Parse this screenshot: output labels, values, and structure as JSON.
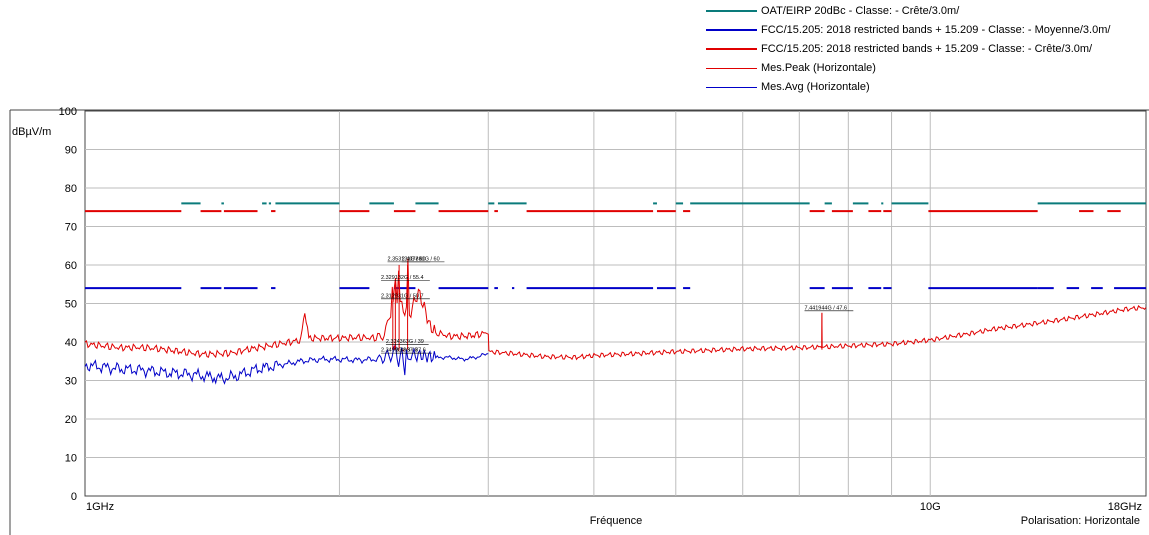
{
  "legend": {
    "items": [
      {
        "label": "OAT/EIRP 20dBc - Classe: - Crête/3.0m/",
        "color": "#0a7b7b",
        "style": "thick"
      },
      {
        "label": "FCC/15.205: 2018 restricted bands + 15.209 - Classe: - Moyenne/3.0m/",
        "color": "#0000c8",
        "style": "thick"
      },
      {
        "label": "FCC/15.205: 2018 restricted bands + 15.209 - Classe: - Crête/3.0m/",
        "color": "#e00000",
        "style": "thick"
      },
      {
        "label": "Mes.Peak (Horizontale)",
        "color": "#e00000",
        "style": "thin"
      },
      {
        "label": "Mes.Avg (Horizontale)",
        "color": "#0000c8",
        "style": "thin"
      }
    ]
  },
  "chart_data": {
    "type": "line",
    "x_scale": "log",
    "xlim": [
      1,
      18
    ],
    "ylim": [
      0,
      100
    ],
    "ylabel": "dBµV/m",
    "xlabel": "Fréquence",
    "polarisation": "Polarisation: Horizontale",
    "grid": true,
    "y_ticks": [
      "0",
      "10",
      "20",
      "30",
      "40",
      "50",
      "60",
      "70",
      "80",
      "90",
      "100"
    ],
    "x_tick_labels": [
      {
        "label": "1GHz",
        "x": 1
      },
      {
        "label": "10G",
        "x": 10
      },
      {
        "label": "18GHz",
        "x": 18
      }
    ],
    "x_grid": [
      2,
      3,
      4,
      5,
      6,
      7,
      8,
      9,
      10
    ],
    "limit_lines": [
      {
        "name": "OAT/EIRP 20dBc - Classe: - Crête/3.0m/",
        "color": "#0a7b7b",
        "y": 76,
        "segments": [
          [
            1.3,
            1.37
          ],
          [
            1.45,
            1.46
          ],
          [
            1.62,
            1.64
          ],
          [
            1.65,
            1.66
          ],
          [
            1.68,
            2.0
          ],
          [
            2.17,
            2.32
          ],
          [
            2.46,
            2.62
          ],
          [
            3.0,
            3.05
          ],
          [
            3.08,
            3.33
          ],
          [
            4.7,
            4.75
          ],
          [
            5.0,
            5.1
          ],
          [
            5.2,
            7.2
          ],
          [
            7.5,
            7.65
          ],
          [
            8.1,
            8.45
          ],
          [
            8.75,
            8.8
          ],
          [
            9.0,
            9.95
          ],
          [
            13.4,
            18
          ]
        ]
      },
      {
        "name": "FCC/15.205: 2018 restricted bands + 15.209 - Classe: - Moyenne/3.0m/",
        "color": "#0000c8",
        "y": 54,
        "segments": [
          [
            1.0,
            1.3
          ],
          [
            1.37,
            1.45
          ],
          [
            1.46,
            1.6
          ],
          [
            1.66,
            1.68
          ],
          [
            2.0,
            2.17
          ],
          [
            2.32,
            2.46
          ],
          [
            2.62,
            3.0
          ],
          [
            3.05,
            3.08
          ],
          [
            3.2,
            3.22
          ],
          [
            3.33,
            4.7
          ],
          [
            4.75,
            5.0
          ],
          [
            5.1,
            5.2
          ],
          [
            7.2,
            7.5
          ],
          [
            7.65,
            8.1
          ],
          [
            8.45,
            8.75
          ],
          [
            8.8,
            9.0
          ],
          [
            9.95,
            13.4
          ],
          [
            13.4,
            14.0
          ],
          [
            14.5,
            15.0
          ],
          [
            15.5,
            16.0
          ],
          [
            16.5,
            18
          ]
        ]
      },
      {
        "name": "FCC/15.205: 2018 restricted bands + 15.209 - Classe: - Crête/3.0m/",
        "color": "#e00000",
        "y": 74,
        "segments": [
          [
            1.0,
            1.3
          ],
          [
            1.37,
            1.45
          ],
          [
            1.46,
            1.6
          ],
          [
            1.66,
            1.68
          ],
          [
            2.0,
            2.17
          ],
          [
            2.32,
            2.46
          ],
          [
            2.62,
            3.0
          ],
          [
            3.05,
            3.08
          ],
          [
            3.33,
            4.7
          ],
          [
            4.75,
            5.0
          ],
          [
            5.1,
            5.2
          ],
          [
            7.2,
            7.5
          ],
          [
            7.65,
            8.1
          ],
          [
            8.45,
            8.75
          ],
          [
            8.8,
            9.0
          ],
          [
            9.95,
            13.4
          ],
          [
            15.0,
            15.6
          ],
          [
            16.2,
            16.8
          ]
        ]
      }
    ],
    "series": [
      {
        "name": "Mes.Peak (Horizontale)",
        "color": "#e00000",
        "points": [
          [
            1.0,
            39.5
          ],
          [
            1.05,
            39.0
          ],
          [
            1.1,
            38.5
          ],
          [
            1.15,
            38.6
          ],
          [
            1.2,
            38.4
          ],
          [
            1.25,
            38.0
          ],
          [
            1.3,
            37.5
          ],
          [
            1.35,
            37.0
          ],
          [
            1.4,
            36.8
          ],
          [
            1.45,
            37.0
          ],
          [
            1.5,
            37.2
          ],
          [
            1.55,
            38.0
          ],
          [
            1.6,
            38.5
          ],
          [
            1.65,
            39.0
          ],
          [
            1.7,
            39.5
          ],
          [
            1.75,
            40.0
          ],
          [
            1.8,
            40.5
          ],
          [
            1.82,
            48.0
          ],
          [
            1.84,
            41.0
          ],
          [
            1.9,
            41.0
          ],
          [
            2.0,
            41.0
          ],
          [
            2.1,
            41.2
          ],
          [
            2.2,
            41.0
          ],
          [
            2.25,
            42.0
          ],
          [
            2.28,
            44.0
          ],
          [
            2.3,
            48.0
          ],
          [
            2.31,
            55.0
          ],
          [
            2.315,
            50.7
          ],
          [
            2.32,
            52.0
          ],
          [
            2.33,
            55.4
          ],
          [
            2.34,
            51.0
          ],
          [
            2.35,
            60.0
          ],
          [
            2.36,
            50.0
          ],
          [
            2.37,
            49.0
          ],
          [
            2.38,
            48.0
          ],
          [
            2.4,
            49.0
          ],
          [
            2.41,
            60.0
          ],
          [
            2.42,
            47.0
          ],
          [
            2.45,
            50.0
          ],
          [
            2.48,
            53.0
          ],
          [
            2.52,
            49.0
          ],
          [
            2.56,
            44.0
          ],
          [
            2.6,
            42.5
          ],
          [
            2.7,
            41.5
          ],
          [
            2.8,
            41.5
          ],
          [
            2.9,
            41.8
          ],
          [
            3.0,
            42.5
          ],
          [
            3.005,
            37.5
          ],
          [
            3.2,
            37.0
          ],
          [
            3.5,
            36.2
          ],
          [
            3.8,
            36.0
          ],
          [
            4.0,
            36.5
          ],
          [
            4.5,
            37.0
          ],
          [
            5.0,
            37.5
          ],
          [
            6.0,
            38.2
          ],
          [
            7.0,
            38.5
          ],
          [
            7.44,
            38.7
          ],
          [
            7.445,
            47.6
          ],
          [
            7.45,
            38.7
          ],
          [
            8.0,
            39.0
          ],
          [
            9.0,
            39.5
          ],
          [
            10.0,
            40.5
          ],
          [
            11.0,
            42.0
          ],
          [
            12.0,
            43.5
          ],
          [
            13.0,
            44.5
          ],
          [
            14.0,
            45.5
          ],
          [
            15.0,
            46.5
          ],
          [
            16.0,
            47.5
          ],
          [
            17.0,
            48.5
          ],
          [
            18.0,
            49.0
          ]
        ]
      },
      {
        "name": "Mes.Avg (Horizontale)",
        "color": "#0000c8",
        "points": [
          [
            1.0,
            34.0
          ],
          [
            1.05,
            33.5
          ],
          [
            1.1,
            33.0
          ],
          [
            1.15,
            32.8
          ],
          [
            1.2,
            32.5
          ],
          [
            1.25,
            32.0
          ],
          [
            1.3,
            31.8
          ],
          [
            1.35,
            31.5
          ],
          [
            1.4,
            31.0
          ],
          [
            1.45,
            30.5
          ],
          [
            1.5,
            31.0
          ],
          [
            1.55,
            32.0
          ],
          [
            1.6,
            33.0
          ],
          [
            1.65,
            33.5
          ],
          [
            1.7,
            34.0
          ],
          [
            1.75,
            34.5
          ],
          [
            1.8,
            35.0
          ],
          [
            1.9,
            35.5
          ],
          [
            2.0,
            35.5
          ],
          [
            2.1,
            35.3
          ],
          [
            2.2,
            35.5
          ],
          [
            2.25,
            36.0
          ],
          [
            2.3,
            36.5
          ],
          [
            2.33,
            38.0
          ],
          [
            2.35,
            35.0
          ],
          [
            2.37,
            37.0
          ],
          [
            2.39,
            33.0
          ],
          [
            2.4,
            38.0
          ],
          [
            2.41,
            34.0
          ],
          [
            2.43,
            37.0
          ],
          [
            2.45,
            36.5
          ],
          [
            2.5,
            36.5
          ],
          [
            2.6,
            36.0
          ],
          [
            2.7,
            36.0
          ],
          [
            2.8,
            35.5
          ],
          [
            2.9,
            36.0
          ],
          [
            3.0,
            37.0
          ]
        ]
      }
    ],
    "annotations": [
      {
        "label": "2.353131G / 60",
        "x": 2.353,
        "y": 60,
        "label_y": 61.2,
        "label_x": 2.28
      },
      {
        "label": "2.407881G / 60",
        "x": 2.408,
        "y": 60,
        "label_y": 61.2,
        "label_x": 2.37
      },
      {
        "label": "2.329132G / 55.4",
        "x": 2.329,
        "y": 55.4,
        "label_y": 56.3,
        "label_x": 2.24
      },
      {
        "label": "2.312931G / 50.7",
        "x": 2.313,
        "y": 50.7,
        "label_y": 51.6,
        "label_x": 2.24
      },
      {
        "label": "2.324363G / 39",
        "x": 2.324,
        "y": 39,
        "label_y": 39.8,
        "label_x": 2.27
      },
      {
        "label": "2.3499G / 37.6",
        "x": 2.35,
        "y": 37.6,
        "label_y": 37.5,
        "label_x": 2.24
      },
      {
        "label": "2.38G / 37.6",
        "x": 2.38,
        "y": 37.6,
        "label_y": 37.5,
        "label_x": 2.33
      },
      {
        "label": "7.441944G / 47.6",
        "x": 7.445,
        "y": 47.6,
        "label_y": 48.5,
        "label_x": 7.1
      }
    ]
  }
}
